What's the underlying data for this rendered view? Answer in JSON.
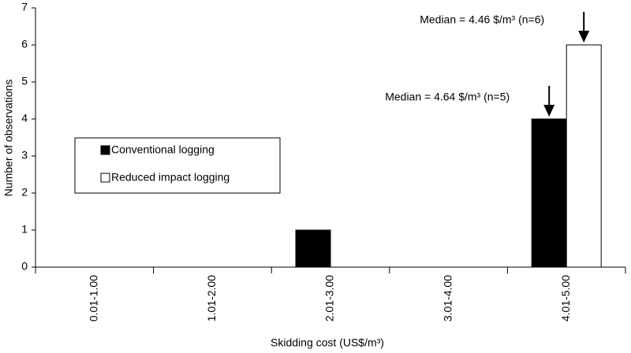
{
  "chart_data": {
    "type": "bar",
    "x_label": "Skidding cost (US$/m³)",
    "y_label": "Number of observations",
    "categories": [
      "0.01-1.00",
      "1.01-2.00",
      "2.01-3.00",
      "3.01-4.00",
      "4.01-5.00"
    ],
    "series": [
      {
        "name": "Conventional logging",
        "color": "#000000",
        "values": [
          0,
          0,
          1,
          0,
          4
        ]
      },
      {
        "name": "Reduced impact logging",
        "color": "#ffffff",
        "values": [
          0,
          0,
          0,
          0,
          6
        ]
      }
    ],
    "ylim": [
      0,
      7
    ],
    "yticks": [
      0,
      1,
      2,
      3,
      4,
      5,
      6,
      7
    ],
    "grid": false,
    "annotations": [
      "Median = 4.46 $/m³ (n=6)",
      "Median = 4.64 $/m³ (n=5)"
    ]
  }
}
